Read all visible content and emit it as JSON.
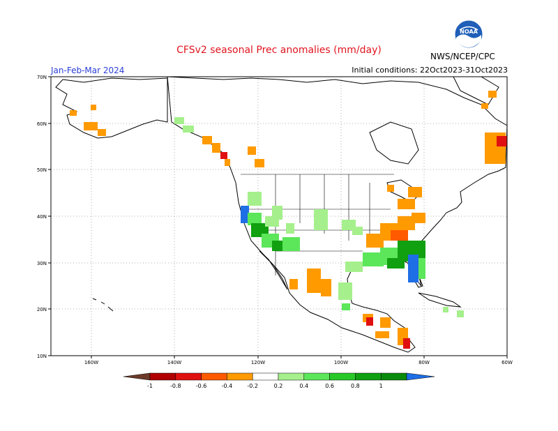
{
  "title": "CFSv2 seasonal Prec anomalies (mm/day)",
  "season": "Jan-Feb-Mar 2024",
  "initial_conditions": "Initial conditions: 22Oct2023-31Oct2023",
  "org": "NWS/NCEP/CPC",
  "logo_text": "NOAA",
  "lat_labels": [
    "70N",
    "60N",
    "50N",
    "40N",
    "30N",
    "20N",
    "10N"
  ],
  "lon_labels": [
    "160W",
    "140W",
    "120W",
    "100W",
    "80W",
    "60W"
  ],
  "colorbar": {
    "ticks": [
      "-1",
      "-0.8",
      "-0.6",
      "-0.4",
      "-0.2",
      "0.2",
      "0.4",
      "0.6",
      "0.8",
      "1"
    ],
    "colors": [
      "#6b3a2a",
      "#b00000",
      "#e01010",
      "#ff5a00",
      "#ff9a00",
      "#ffffff",
      "#a5f08c",
      "#5ce65a",
      "#28c828",
      "#10a010",
      "#0a8a0a",
      "#1e6ee6"
    ]
  },
  "anomaly_colors": {
    "dry_light": "#ff9a00",
    "dry_medium": "#ff5a00",
    "dry_strong": "#e01010",
    "wet_light": "#a5f08c",
    "wet_medium": "#5ce65a",
    "wet_strong": "#10a010",
    "wet_extreme": "#1e6ee6"
  }
}
